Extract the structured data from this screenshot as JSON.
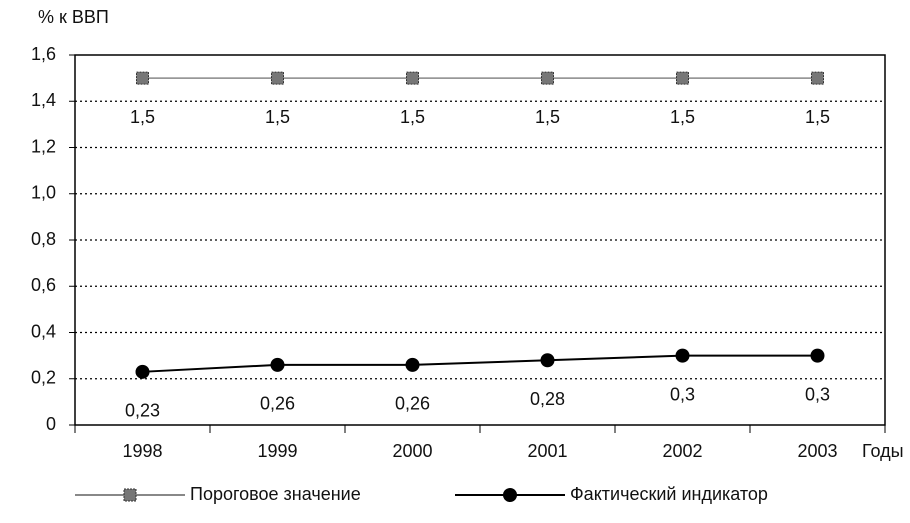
{
  "chart_data": {
    "type": "line",
    "y_label": "% к ВВП",
    "x_label": "Годы",
    "categories": [
      "1998",
      "1999",
      "2000",
      "2001",
      "2002",
      "2003"
    ],
    "series": [
      {
        "name": "Пороговое значение",
        "color": "#888888",
        "marker": "square",
        "values": [
          1.5,
          1.5,
          1.5,
          1.5,
          1.5,
          1.5
        ],
        "value_labels": [
          "1,5",
          "1,5",
          "1,5",
          "1,5",
          "1,5",
          "1,5"
        ]
      },
      {
        "name": "Фактический индикатор",
        "color": "#000000",
        "marker": "circle",
        "values": [
          0.23,
          0.26,
          0.26,
          0.28,
          0.3,
          0.3
        ],
        "value_labels": [
          "0,23",
          "0,26",
          "0,26",
          "0,28",
          "0,3",
          "0,3"
        ]
      }
    ],
    "ylim": [
      0,
      1.6
    ],
    "yticks": [
      0,
      {
        "value": 0.2,
        "label": "0,2"
      },
      {
        "value": 0.4,
        "label": "0,4"
      },
      {
        "value": 0.6,
        "label": "0,6"
      },
      {
        "value": 0.8,
        "label": "0,8"
      },
      {
        "value": 1.0,
        "label": "1,0"
      },
      {
        "value": 1.2,
        "label": "1,2"
      },
      {
        "value": 1.4,
        "label": "1,4"
      },
      {
        "value": 1.6,
        "label": "1,6"
      }
    ],
    "grid": true
  }
}
